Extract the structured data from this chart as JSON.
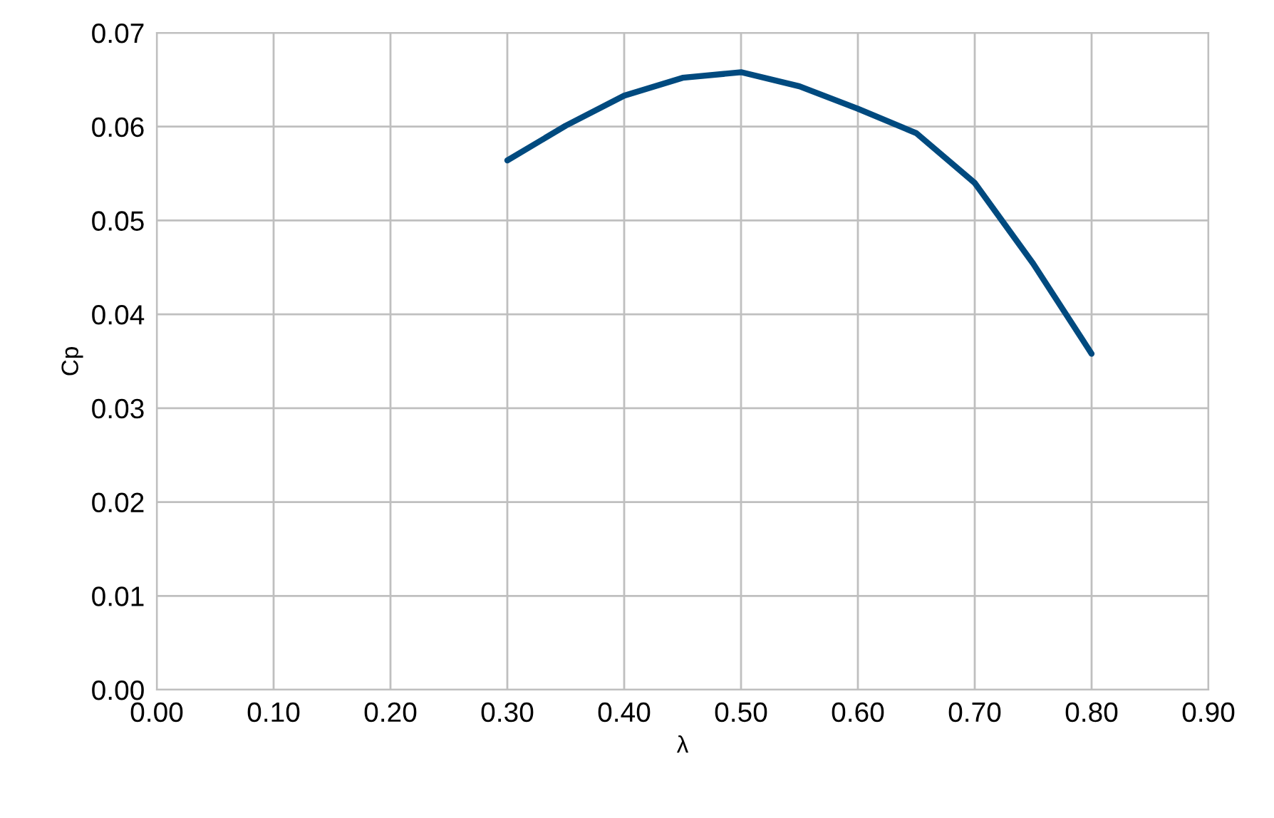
{
  "chart_data": {
    "type": "line",
    "xlabel": "λ",
    "ylabel": "Cp",
    "series": [
      {
        "color": "#004a7f",
        "x": [
          0.3,
          0.35,
          0.4,
          0.45,
          0.5,
          0.55,
          0.6,
          0.65,
          0.7,
          0.75,
          0.8
        ],
        "values": [
          0.0564,
          0.0601,
          0.0633,
          0.0652,
          0.0658,
          0.0643,
          0.0619,
          0.0593,
          0.054,
          0.0454,
          0.0358
        ]
      }
    ],
    "xlim": [
      0,
      0.9
    ],
    "xticks": [
      {
        "value": 0,
        "label": "0.00"
      },
      {
        "value": 0.1,
        "label": "0.10"
      },
      {
        "value": 0.2,
        "label": "0.20"
      },
      {
        "value": 0.3,
        "label": "0.30"
      },
      {
        "value": 0.4,
        "label": "0.40"
      },
      {
        "value": 0.5,
        "label": "0.50"
      },
      {
        "value": 0.6,
        "label": "0.60"
      },
      {
        "value": 0.7,
        "label": "0.70"
      },
      {
        "value": 0.8,
        "label": "0.80"
      },
      {
        "value": 0.9,
        "label": "0.90"
      }
    ],
    "ylim": [
      0,
      0.07
    ],
    "yticks": [
      {
        "value": 0,
        "label": "0.00"
      },
      {
        "value": 0.01,
        "label": "0.01"
      },
      {
        "value": 0.02,
        "label": "0.02"
      },
      {
        "value": 0.03,
        "label": "0.03"
      },
      {
        "value": 0.04,
        "label": "0.04"
      },
      {
        "value": 0.05,
        "label": "0.05"
      },
      {
        "value": 0.06,
        "label": "0.06"
      },
      {
        "value": 0.07,
        "label": "0.07"
      }
    ],
    "grid": true,
    "marker": "none",
    "line_style": "solid"
  }
}
